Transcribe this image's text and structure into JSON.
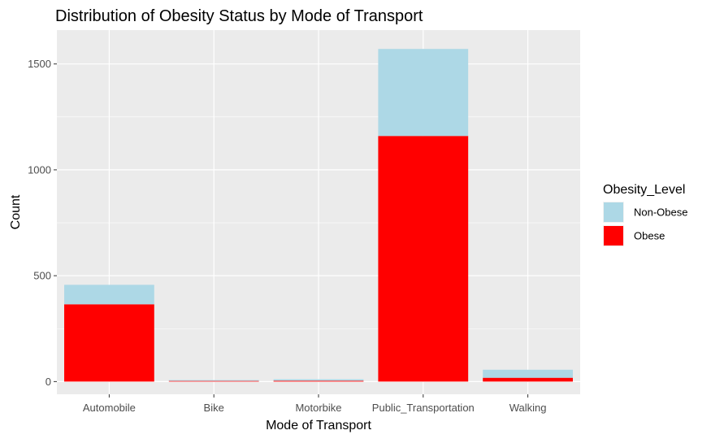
{
  "chart_data": {
    "type": "bar",
    "stacked": true,
    "title": "Distribution of Obesity Status by Mode of Transport",
    "xlabel": "Mode of Transport",
    "ylabel": "Count",
    "categories": [
      "Automobile",
      "Bike",
      "Motorbike",
      "Public_Transportation",
      "Walking"
    ],
    "series": [
      {
        "name": "Obese",
        "color": "#ff0000",
        "values": [
          365,
          3,
          4,
          1160,
          18
        ]
      },
      {
        "name": "Non-Obese",
        "color": "#add8e6",
        "values": [
          92,
          4,
          7,
          411,
          38
        ]
      }
    ],
    "stack_order_bottom_to_top": [
      "Obese",
      "Non-Obese"
    ],
    "ylim": [
      -60,
      1660
    ],
    "yticks": [
      0,
      500,
      1000,
      1500
    ],
    "grid": true,
    "panel_background": "#ebebeb",
    "grid_color": "#ffffff",
    "legend": {
      "title": "Obesity_Level",
      "placement": "right",
      "entries": [
        "Non-Obese",
        "Obese"
      ]
    }
  }
}
